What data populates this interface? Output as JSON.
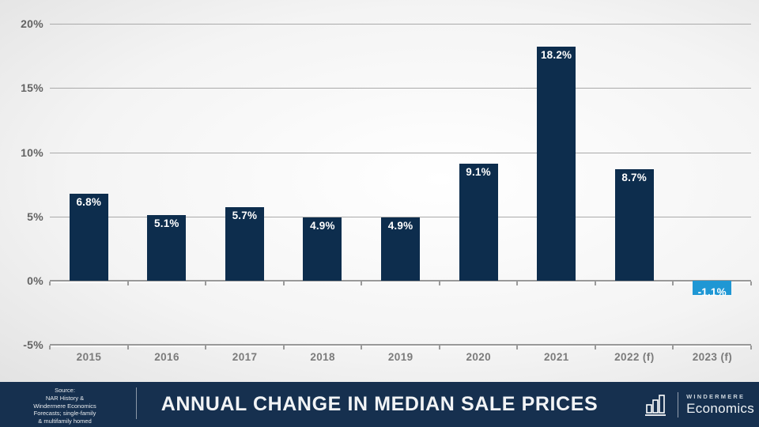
{
  "chart_data": {
    "type": "bar",
    "categories": [
      "2015",
      "2016",
      "2017",
      "2018",
      "2019",
      "2020",
      "2021",
      "2022 (f)",
      "2023 (f)"
    ],
    "values": [
      6.8,
      5.1,
      5.7,
      4.9,
      4.9,
      9.1,
      18.2,
      8.7,
      -1.1
    ],
    "value_labels": [
      "6.8%",
      "5.1%",
      "5.7%",
      "4.9%",
      "4.9%",
      "9.1%",
      "18.2%",
      "8.7%",
      "-1.1%"
    ],
    "bar_colors": [
      "#0d2d4d",
      "#0d2d4d",
      "#0d2d4d",
      "#0d2d4d",
      "#0d2d4d",
      "#0d2d4d",
      "#0d2d4d",
      "#0d2d4d",
      "#1f97d4"
    ],
    "title": "ANNUAL CHANGE IN MEDIAN SALE PRICES",
    "xlabel": "",
    "ylabel": "",
    "ylim": [
      -5,
      20
    ],
    "yticks": [
      {
        "value": 20,
        "label": "20%"
      },
      {
        "value": 15,
        "label": "15%"
      },
      {
        "value": 10,
        "label": "10%"
      },
      {
        "value": 5,
        "label": "5%"
      },
      {
        "value": 0,
        "label": "0%"
      },
      {
        "value": -5,
        "label": "-5%"
      }
    ],
    "grid": true,
    "legend": "none"
  },
  "footer": {
    "source_lines": [
      "Source:",
      "NAR History &",
      "Windermere Economics",
      "Forecasts; single-family",
      "& multifamily homed"
    ],
    "title": "ANNUAL CHANGE IN MEDIAN SALE PRICES",
    "logo": {
      "brand_top": "WINDERMERE",
      "brand_bottom": "Economics",
      "icon": "bar-chart-icon"
    }
  },
  "colors": {
    "bar_navy": "#0d2d4d",
    "bar_forecast_blue": "#1f97d4",
    "footer_navy": "#16304f",
    "gridline": "#aaaaaa",
    "axis_line": "#999999",
    "tick_text": "#636363",
    "category_text": "#7b7b7b",
    "bar_label_text": "#ffffff"
  }
}
